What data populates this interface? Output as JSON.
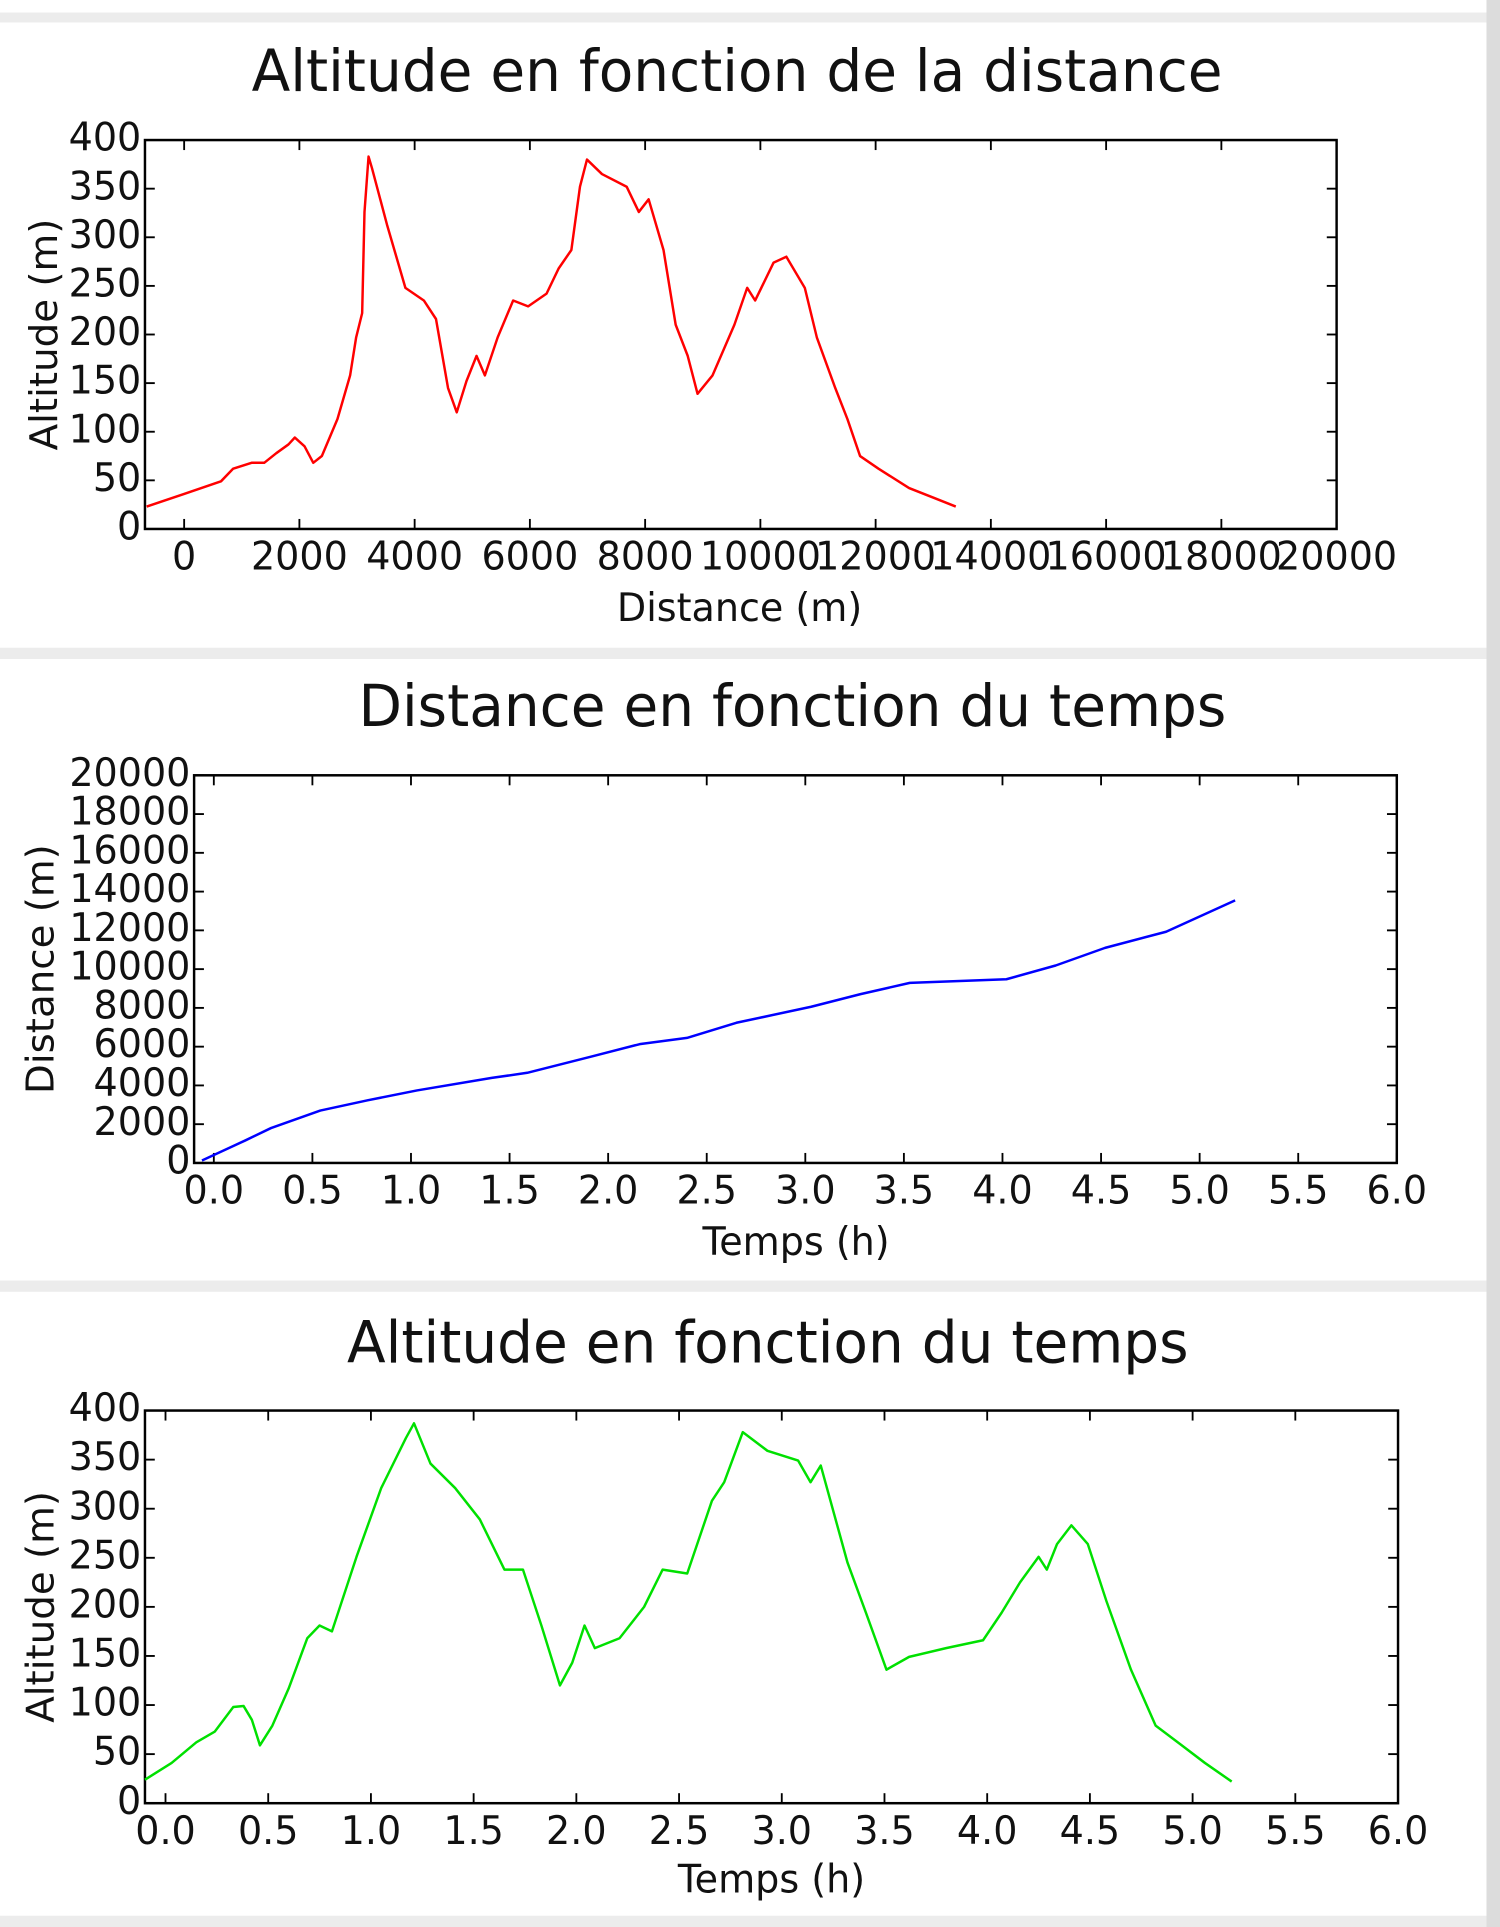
{
  "chart_data": [
    {
      "type": "line",
      "title": "Altitude en fonction de la distance",
      "xlabel": "Distance (m)",
      "ylabel": "Altitude (m)",
      "color": "#ff0000",
      "x": [
        -650,
        0,
        640,
        850,
        1170,
        1390,
        1600,
        1810,
        1920,
        2090,
        2240,
        2390,
        2660,
        2880,
        2985,
        3090,
        3130,
        3200,
        3260,
        3520,
        3840,
        4160,
        4370,
        4580,
        4730,
        4900,
        5075,
        5220,
        5440,
        5710,
        5970,
        6290,
        6500,
        6720,
        6870,
        6990,
        7250,
        7680,
        7890,
        8060,
        8320,
        8530,
        8740,
        8910,
        9170,
        9550,
        9770,
        9910,
        10230,
        10450,
        10770,
        10980,
        11300,
        11510,
        11730,
        12050,
        12580,
        13010,
        13390
      ],
      "values": [
        23,
        36,
        49,
        62,
        68,
        68,
        78,
        87,
        94,
        85,
        68,
        75,
        113,
        158,
        197,
        222,
        326,
        383,
        371,
        313,
        248,
        235,
        216,
        145,
        120,
        152,
        178,
        158,
        197,
        235,
        229,
        242,
        268,
        287,
        352,
        380,
        365,
        352,
        326,
        339,
        287,
        210,
        178,
        139,
        158,
        210,
        248,
        235,
        274,
        280,
        248,
        197,
        145,
        113,
        75,
        62,
        42,
        32,
        23
      ],
      "xlim": [
        -680,
        20000
      ],
      "xticks": [
        0,
        2000,
        4000,
        6000,
        8000,
        10000,
        12000,
        14000,
        16000,
        18000,
        20000
      ],
      "ylim": [
        0,
        400
      ],
      "yticks": [
        0,
        50,
        100,
        150,
        200,
        250,
        300,
        350,
        400
      ]
    },
    {
      "type": "line",
      "title": "Distance en fonction du temps",
      "xlabel": "Temps (h)",
      "ylabel": "Distance (m)",
      "color": "#0000ff",
      "x": [
        -0.06,
        0.16,
        0.29,
        0.54,
        0.78,
        1.03,
        1.41,
        1.59,
        1.91,
        2.16,
        2.4,
        2.65,
        3.03,
        3.28,
        3.53,
        4.02,
        4.27,
        4.52,
        4.83,
        5.18
      ],
      "values": [
        130,
        1160,
        1800,
        2700,
        3230,
        3740,
        4390,
        4650,
        5480,
        6130,
        6450,
        7230,
        8060,
        8710,
        9290,
        9480,
        10190,
        11100,
        11930,
        13550
      ],
      "xlim": [
        -0.1,
        6.0
      ],
      "xticks": [
        {
          "value": 0,
          "label": "0.0"
        },
        0.5,
        {
          "value": 1,
          "label": "1.0"
        },
        1.5,
        {
          "value": 2,
          "label": "2.0"
        },
        2.5,
        {
          "value": 3,
          "label": "3.0"
        },
        3.5,
        {
          "value": 4,
          "label": "4.0"
        },
        4.5,
        {
          "value": 5,
          "label": "5.0"
        },
        5.5,
        {
          "value": 6,
          "label": "6.0"
        }
      ],
      "ylim": [
        0,
        20000
      ],
      "yticks": [
        0,
        2000,
        4000,
        6000,
        8000,
        10000,
        12000,
        14000,
        16000,
        18000,
        20000
      ]
    },
    {
      "type": "line",
      "title": "Altitude en fonction du temps",
      "xlabel": "Temps (h)",
      "ylabel": "Altitude (m)",
      "color": "#00e000",
      "x": [
        -0.1,
        0.03,
        0.15,
        0.24,
        0.33,
        0.38,
        0.42,
        0.46,
        0.52,
        0.6,
        0.69,
        0.75,
        0.81,
        0.93,
        1.05,
        1.17,
        1.21,
        1.29,
        1.41,
        1.53,
        1.65,
        1.74,
        1.83,
        1.92,
        1.98,
        2.04,
        2.09,
        2.21,
        2.33,
        2.42,
        2.54,
        2.66,
        2.72,
        2.81,
        2.93,
        3.08,
        3.14,
        3.19,
        3.32,
        3.41,
        3.51,
        3.62,
        3.8,
        3.98,
        4.07,
        4.16,
        4.25,
        4.29,
        4.34,
        4.41,
        4.49,
        4.58,
        4.7,
        4.82,
        4.94,
        5.06,
        5.19
      ],
      "values": [
        24,
        41,
        62,
        73,
        98,
        99,
        85,
        59,
        79,
        117,
        168,
        181,
        175,
        251,
        321,
        372,
        387,
        346,
        321,
        289,
        238,
        238,
        181,
        120,
        143,
        181,
        158,
        168,
        200,
        238,
        234,
        308,
        327,
        378,
        359,
        349,
        327,
        344,
        245,
        194,
        136,
        149,
        158,
        166,
        194,
        225,
        251,
        238,
        264,
        283,
        264,
        206,
        136,
        79,
        60,
        41,
        22
      ],
      "xlim": [
        -0.1,
        6.0
      ],
      "xticks": [
        {
          "value": 0,
          "label": "0.0"
        },
        0.5,
        {
          "value": 1,
          "label": "1.0"
        },
        1.5,
        {
          "value": 2,
          "label": "2.0"
        },
        2.5,
        {
          "value": 3,
          "label": "3.0"
        },
        3.5,
        {
          "value": 4,
          "label": "4.0"
        },
        4.5,
        {
          "value": 5,
          "label": "5.0"
        },
        5.5,
        {
          "value": 6,
          "label": "6.0"
        }
      ],
      "ylim": [
        0,
        400
      ],
      "yticks": [
        0,
        50,
        100,
        150,
        200,
        250,
        300,
        350,
        400
      ]
    }
  ]
}
